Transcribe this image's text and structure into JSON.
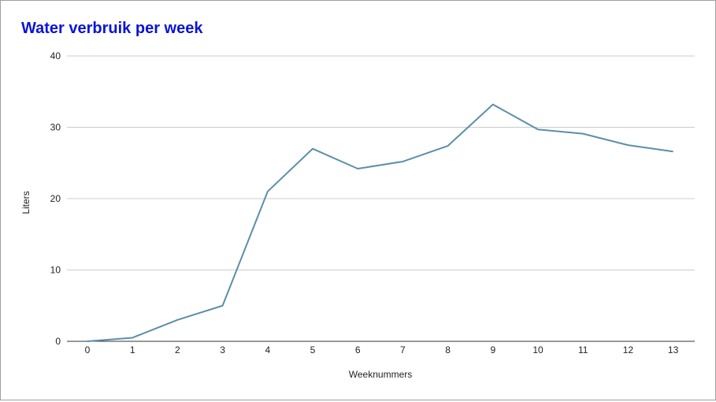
{
  "chart_data": {
    "type": "line",
    "title": "Water verbruik per week",
    "xlabel": "Weeknummers",
    "ylabel": "Liters",
    "x": [
      0,
      1,
      2,
      3,
      4,
      5,
      6,
      7,
      8,
      9,
      10,
      11,
      12,
      13
    ],
    "series": [
      {
        "values": [
          0,
          0.5,
          3,
          5,
          21,
          27,
          24.2,
          25.2,
          27.4,
          33.2,
          29.7,
          29.1,
          27.5,
          26.6
        ],
        "color": "#5b8fa8"
      }
    ],
    "ylim": [
      0,
      40
    ],
    "yticks": [
      0,
      10,
      20,
      30,
      40
    ],
    "grid": true,
    "colors": {
      "title": "#0a14d8",
      "gridline": "#cccccc",
      "axis": "#333333"
    }
  }
}
